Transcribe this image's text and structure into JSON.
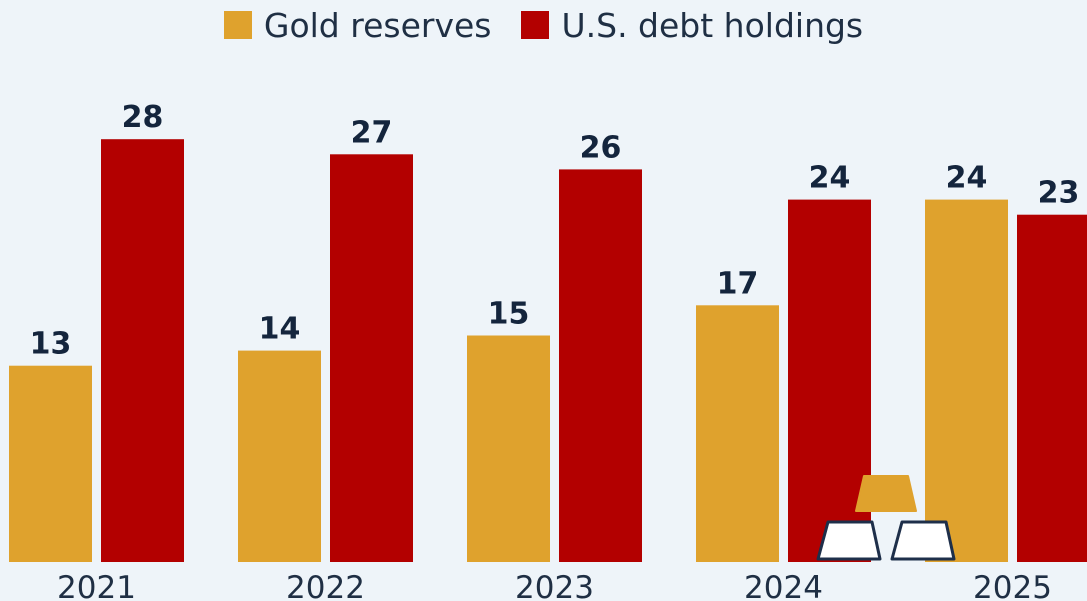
{
  "chart_data": {
    "type": "bar",
    "categories": [
      "2021",
      "2022",
      "2023",
      "2024",
      "2025"
    ],
    "series": [
      {
        "name": "Gold reserves",
        "color": "#dfa22d",
        "values": [
          13,
          14,
          15,
          17,
          24
        ]
      },
      {
        "name": "U.S. debt holdings",
        "color": "#b30000",
        "values": [
          28,
          27,
          26,
          24,
          23
        ]
      }
    ],
    "title": "",
    "xlabel": "",
    "ylabel": "",
    "legend": "top-center",
    "grid": false,
    "decoration": "gold-bars-icon"
  }
}
